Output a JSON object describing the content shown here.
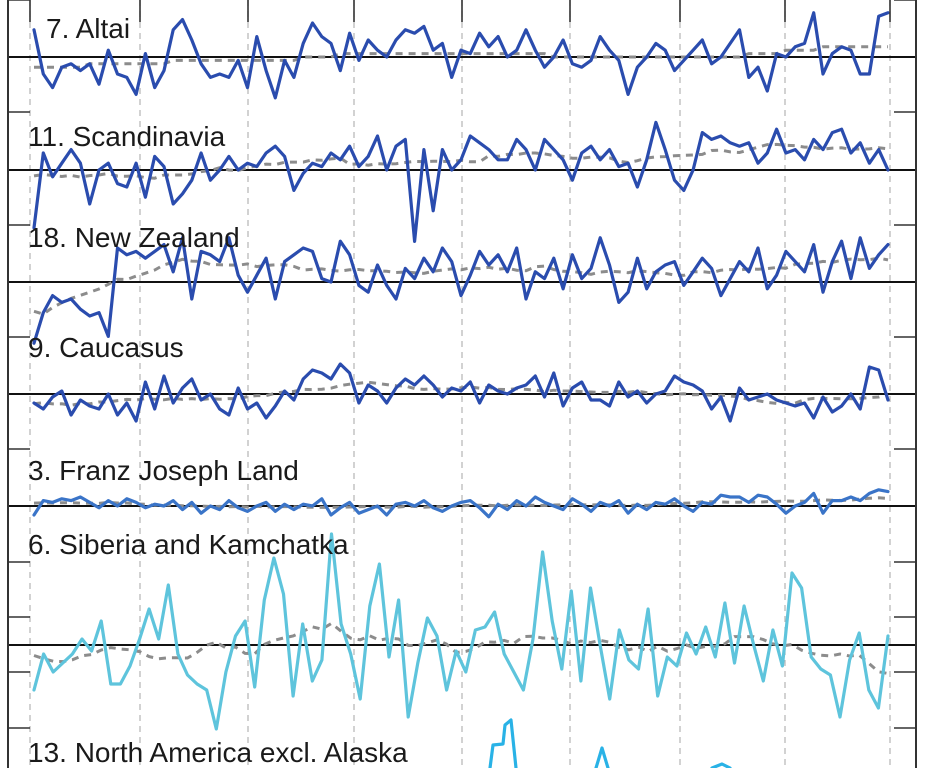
{
  "chart_data": {
    "type": "line",
    "title": "",
    "xlabel": "",
    "ylabel": "",
    "grid": true,
    "legend": "none",
    "panels": [
      {
        "label": "7. Altai",
        "color": "#2a4cae",
        "values": [
          0.8,
          -0.5,
          -0.9,
          -0.3,
          -0.2,
          -0.4,
          -0.2,
          -0.8,
          0.2,
          -0.5,
          -0.6,
          -1.1,
          0.1,
          -0.9,
          -0.4,
          0.8,
          1.1,
          0.5,
          -0.2,
          -0.6,
          -0.5,
          -0.6,
          -0.1,
          -0.9,
          0.6,
          -0.4,
          -1.2,
          -0.1,
          -0.6,
          0.4,
          1.0,
          0.6,
          0.4,
          -0.4,
          0.7,
          -0.1,
          0.5,
          0.2,
          0.0,
          0.5,
          0.8,
          0.7,
          0.9,
          0.2,
          0.4,
          -0.6,
          0.2,
          0.1,
          0.7,
          0.3,
          0.6,
          0.0,
          0.2,
          0.8,
          0.2,
          -0.3,
          0.0,
          0.5,
          -0.2,
          -0.3,
          -0.1,
          0.6,
          0.2,
          -0.1,
          -1.1,
          -0.3,
          0.0,
          0.4,
          0.2,
          -0.4,
          -0.1,
          0.2,
          0.5,
          -0.2,
          0.0,
          0.4,
          0.8,
          -0.6,
          -0.3,
          -1.0,
          0.1,
          0.0,
          0.3,
          0.4,
          1.3,
          -0.5,
          0.1,
          0.3,
          0.2,
          -0.5,
          -0.5,
          1.2,
          1.3
        ],
        "trend": [
          -0.3,
          -0.3,
          -0.3,
          -0.3,
          -0.3,
          -0.3,
          -0.2,
          -0.2,
          -0.2,
          -0.2,
          -0.2,
          -0.2,
          -0.2,
          -0.2,
          -0.2,
          -0.1,
          -0.1,
          -0.1,
          -0.1,
          -0.1,
          -0.1,
          -0.1,
          -0.1,
          -0.1,
          -0.1,
          -0.1,
          -0.1,
          -0.1,
          -0.1,
          0.0,
          0.0,
          0.0,
          0.0,
          0.1,
          0.1,
          0.1,
          0.1,
          0.1,
          0.1,
          0.1,
          0.1,
          0.1,
          0.1,
          0.1,
          0.1,
          0.1,
          0.1,
          0.1,
          0.1,
          0.1,
          0.1,
          0.1,
          0.1,
          0.1,
          0.1,
          0.1,
          0.0,
          0.0,
          0.0,
          0.0,
          0.0,
          0.0,
          0.0,
          0.0,
          0.0,
          0.0,
          0.0,
          0.0,
          0.0,
          0.0,
          0.0,
          0.0,
          0.0,
          0.0,
          0.0,
          0.0,
          0.0,
          0.1,
          0.1,
          0.1,
          0.1,
          0.2,
          0.2,
          0.2,
          0.2,
          0.3,
          0.3,
          0.3,
          0.3,
          0.3,
          0.3,
          0.3,
          0.3
        ]
      },
      {
        "label": "11. Scandinavia",
        "color": "#2a4cae",
        "values": [
          -1.7,
          0.5,
          -0.2,
          0.2,
          0.6,
          0.2,
          -1.0,
          0.0,
          0.2,
          -0.4,
          -0.5,
          0.2,
          -0.8,
          0.4,
          0.1,
          -1.0,
          -0.7,
          -0.3,
          0.5,
          -0.3,
          0.0,
          0.4,
          0.0,
          0.2,
          0.1,
          0.5,
          0.7,
          0.4,
          -0.6,
          -0.1,
          0.2,
          0.1,
          0.5,
          0.3,
          0.7,
          0.1,
          0.4,
          1.0,
          0.0,
          0.7,
          0.9,
          -2.1,
          0.6,
          -1.2,
          0.6,
          0.0,
          0.3,
          1.0,
          0.8,
          0.6,
          0.3,
          0.3,
          0.9,
          0.6,
          0.0,
          0.9,
          0.6,
          0.3,
          -0.3,
          0.5,
          0.7,
          0.3,
          0.6,
          0.1,
          0.2,
          -0.5,
          0.3,
          1.4,
          0.6,
          -0.3,
          -0.6,
          0.0,
          1.1,
          0.9,
          1.0,
          0.8,
          0.7,
          0.8,
          0.2,
          0.5,
          1.2,
          0.5,
          0.6,
          0.3,
          0.9,
          0.6,
          1.1,
          1.2,
          0.5,
          0.8,
          0.2,
          0.6,
          0.0
        ]
      },
      {
        "label": "18. New Zealand",
        "color": "#2a4cae",
        "values": [
          -1.8,
          -0.9,
          -0.4,
          -0.6,
          -0.5,
          -0.8,
          -1.0,
          -0.9,
          -1.6,
          1.0,
          0.8,
          0.9,
          0.7,
          0.9,
          1.1,
          0.3,
          1.3,
          -0.5,
          0.9,
          0.8,
          0.6,
          1.3,
          0.2,
          -0.3,
          0.2,
          0.7,
          -0.5,
          0.6,
          0.8,
          1.0,
          0.9,
          0.1,
          0.0,
          1.2,
          0.8,
          -0.1,
          -0.3,
          0.5,
          -0.1,
          -0.5,
          0.4,
          0.1,
          0.7,
          0.3,
          1.0,
          0.6,
          -0.4,
          0.2,
          0.9,
          0.5,
          0.8,
          0.3,
          1.0,
          -0.5,
          0.3,
          0.1,
          0.7,
          -0.2,
          0.8,
          0.1,
          0.4,
          1.3,
          0.5,
          -0.6,
          -0.3,
          0.7,
          -0.2,
          0.3,
          0.5,
          0.6,
          -0.1,
          0.3,
          0.7,
          0.4,
          -0.4,
          0.1,
          0.6,
          0.3,
          1.0,
          -0.2,
          0.2,
          0.9,
          0.6,
          0.3,
          1.1,
          -0.3,
          0.6,
          1.2,
          0.1,
          1.3,
          0.4,
          0.8,
          1.1
        ]
      },
      {
        "label": "9. Caucasus",
        "color": "#2a4cae",
        "values": [
          -0.3,
          -0.5,
          -0.1,
          0.1,
          -0.7,
          -0.2,
          -0.4,
          -0.5,
          0.0,
          -0.7,
          -0.3,
          -0.9,
          0.4,
          -0.5,
          0.6,
          -0.3,
          0.2,
          0.5,
          -0.2,
          0.0,
          -0.5,
          -0.7,
          0.2,
          -0.5,
          -0.3,
          -0.8,
          -0.4,
          0.1,
          -0.2,
          0.5,
          0.8,
          0.7,
          0.5,
          1.0,
          0.7,
          -0.3,
          0.3,
          0.1,
          -0.3,
          0.2,
          0.5,
          0.3,
          0.6,
          0.3,
          -0.1,
          0.2,
          0.1,
          0.4,
          -0.3,
          0.3,
          0.1,
          0.0,
          0.2,
          0.3,
          0.6,
          -0.1,
          0.7,
          -0.4,
          0.2,
          0.4,
          -0.2,
          -0.2,
          -0.4,
          0.4,
          -0.1,
          0.1,
          -0.3,
          0.0,
          0.1,
          0.6,
          0.4,
          0.3,
          0.1,
          -0.5,
          -0.1,
          -0.9,
          0.2,
          -0.2,
          -0.1,
          0.0,
          -0.2,
          -0.3,
          -0.4,
          -0.3,
          -0.8,
          -0.1,
          -0.6,
          -0.4,
          0.0,
          -0.5,
          0.9,
          0.8,
          -0.2
        ]
      },
      {
        "label": "3. Franz Joseph Land",
        "color": "#3a74c8",
        "values": [
          -0.5,
          0.3,
          0.2,
          0.4,
          0.3,
          0.5,
          0.2,
          -0.1,
          0.3,
          0.0,
          0.4,
          0.2,
          -0.1,
          0.1,
          0.0,
          0.3,
          -0.2,
          0.2,
          -0.4,
          0.0,
          -0.2,
          0.3,
          -0.1,
          -0.3,
          0.0,
          0.2,
          -0.3,
          0.1,
          -0.2,
          0.1,
          0.0,
          0.4,
          -0.5,
          -0.1,
          0.2,
          -0.4,
          -0.2,
          0.0,
          -0.5,
          0.1,
          0.2,
          0.0,
          0.3,
          -0.1,
          -0.3,
          0.0,
          0.2,
          0.3,
          -0.1,
          -0.6,
          0.1,
          -0.2,
          0.3,
          0.0,
          0.5,
          0.2,
          0.0,
          -0.2,
          0.4,
          0.1,
          -0.3,
          0.2,
          0.0,
          0.3,
          -0.4,
          0.1,
          -0.2,
          0.2,
          0.1,
          0.4,
          0.0,
          -0.3,
          0.2,
          0.1,
          0.6,
          0.5,
          0.5,
          0.2,
          0.6,
          0.5,
          0.1,
          -0.4,
          0.0,
          0.2,
          0.7,
          -0.4,
          0.3,
          0.3,
          0.5,
          0.3,
          0.7,
          0.9,
          0.8
        ]
      },
      {
        "label": "6. Siberia and Kamchatka",
        "color": "#5ec4dc",
        "values": [
          -1.5,
          -0.3,
          -0.9,
          -0.6,
          -0.3,
          0.2,
          -0.2,
          0.8,
          -1.3,
          -1.3,
          -0.7,
          0.2,
          1.2,
          0.2,
          2.0,
          -0.3,
          -1.0,
          -1.3,
          -1.5,
          -2.8,
          -0.9,
          0.3,
          0.8,
          -1.4,
          1.5,
          2.9,
          1.7,
          -1.7,
          0.7,
          -1.2,
          -0.5,
          3.7,
          0.7,
          -0.3,
          -1.8,
          1.3,
          2.7,
          -0.4,
          1.5,
          -2.4,
          -0.6,
          0.9,
          0.3,
          -1.5,
          -0.2,
          -0.9,
          0.5,
          0.6,
          1.1,
          -0.3,
          -0.9,
          -1.5,
          0.2,
          3.1,
          0.8,
          -0.8,
          1.8,
          -1.2,
          1.9,
          0.0,
          -1.8,
          0.5,
          -0.5,
          -0.8,
          1.2,
          -1.7,
          -0.4,
          -0.7,
          0.4,
          -0.3,
          0.6,
          -0.4,
          1.4,
          -0.6,
          1.3,
          0.0,
          -1.2,
          0.5,
          -0.7,
          2.4,
          1.9,
          -0.4,
          -0.8,
          -1.0,
          -2.4,
          -0.5,
          0.4,
          -1.5,
          -2.1,
          0.3
        ]
      },
      {
        "label": "13. North America excl. Alaska",
        "color": "#29b2e6",
        "values": []
      }
    ]
  }
}
